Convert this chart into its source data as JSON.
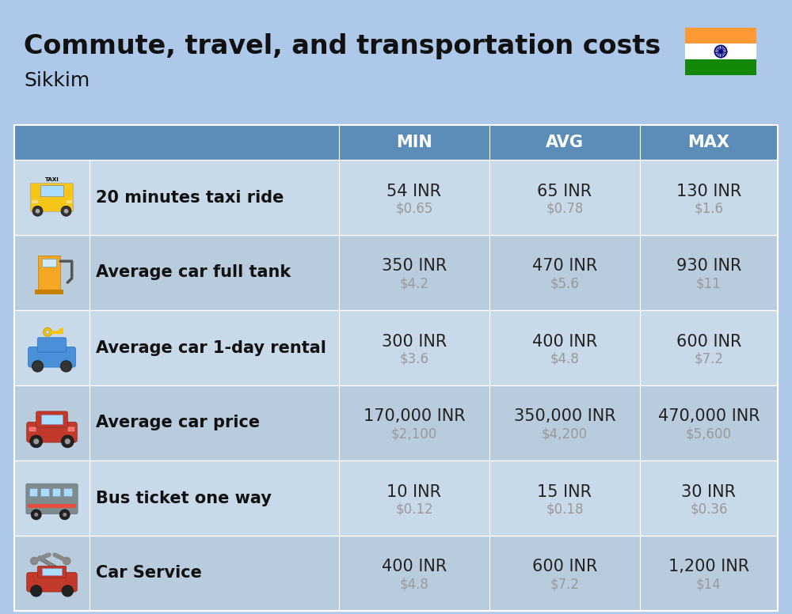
{
  "title": "Commute, travel, and transportation costs",
  "subtitle": "Sikkim",
  "background_color": "#adc8e8",
  "header_color": "#5b8db8",
  "row_color_odd": "#c8d9ea",
  "row_color_even": "#b8ccde",
  "header_text_color": "#ffffff",
  "label_text_color": "#111111",
  "value_text_color": "#222222",
  "subvalue_text_color": "#999999",
  "col_headers": [
    "MIN",
    "AVG",
    "MAX"
  ],
  "rows": [
    {
      "label": "20 minutes taxi ride",
      "values": [
        "54 INR",
        "65 INR",
        "130 INR"
      ],
      "subvalues": [
        "$0.65",
        "$0.78",
        "$1.6"
      ]
    },
    {
      "label": "Average car full tank",
      "values": [
        "350 INR",
        "470 INR",
        "930 INR"
      ],
      "subvalues": [
        "$4.2",
        "$5.6",
        "$11"
      ]
    },
    {
      "label": "Average car 1-day rental",
      "values": [
        "300 INR",
        "400 INR",
        "600 INR"
      ],
      "subvalues": [
        "$3.6",
        "$4.8",
        "$7.2"
      ]
    },
    {
      "label": "Average car price",
      "values": [
        "170,000 INR",
        "350,000 INR",
        "470,000 INR"
      ],
      "subvalues": [
        "$2,100",
        "$4,200",
        "$5,600"
      ]
    },
    {
      "label": "Bus ticket one way",
      "values": [
        "10 INR",
        "15 INR",
        "30 INR"
      ],
      "subvalues": [
        "$0.12",
        "$0.18",
        "$0.36"
      ]
    },
    {
      "label": "Car Service",
      "values": [
        "400 INR",
        "600 INR",
        "1,200 INR"
      ],
      "subvalues": [
        "$4.8",
        "$7.2",
        "$14"
      ]
    }
  ],
  "title_fontsize": 24,
  "subtitle_fontsize": 18,
  "header_fontsize": 15,
  "label_fontsize": 15,
  "value_fontsize": 15,
  "subvalue_fontsize": 12,
  "fig_width": 10.0,
  "fig_height": 7.76
}
